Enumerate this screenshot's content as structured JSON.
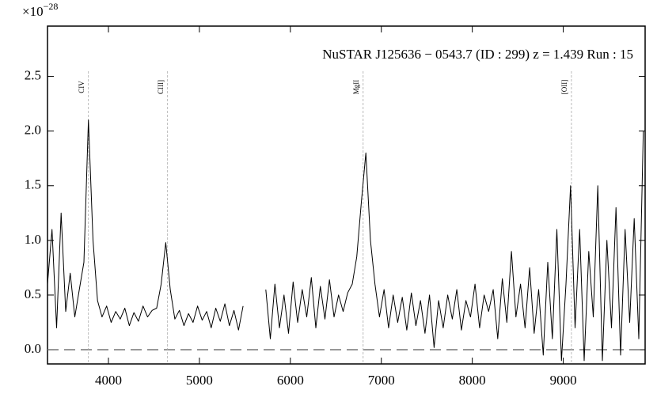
{
  "chart_data": {
    "type": "line",
    "title": "NuSTAR J125636 − 0543.7 (ID : 299)   z = 1.439   Run : 15",
    "y_offset_label": {
      "base": "×10",
      "exponent": "−28"
    },
    "xlim": [
      3330,
      9900
    ],
    "ylim": [
      -0.13,
      2.96
    ],
    "xticks": [
      4000,
      5000,
      6000,
      7000,
      8000,
      9000
    ],
    "yticks": [
      {
        "value": 0,
        "label": "0.0"
      },
      0.5,
      {
        "value": 1,
        "label": "1.0"
      },
      1.5,
      {
        "value": 2,
        "label": "2.0"
      },
      2.5
    ],
    "hline": 0,
    "annotations": [
      {
        "label": "CIV",
        "x": 3780
      },
      {
        "label": "CIII]",
        "x": 4650
      },
      {
        "label": "MgII",
        "x": 6800
      },
      {
        "label": "[OII]",
        "x": 9090
      }
    ],
    "x": [
      3330,
      3380,
      3430,
      3480,
      3530,
      3580,
      3630,
      3680,
      3730,
      3780,
      3830,
      3880,
      3930,
      3980,
      4030,
      4080,
      4130,
      4180,
      4230,
      4280,
      4330,
      4380,
      4430,
      4480,
      4530,
      4580,
      4630,
      4680,
      4730,
      4780,
      4830,
      4880,
      4930,
      4980,
      5030,
      5080,
      5130,
      5180,
      5230,
      5280,
      5330,
      5380,
      5430,
      5480,
      5530,
      5580,
      5630,
      5680,
      5730,
      5780,
      5830,
      5880,
      5930,
      5980,
      6030,
      6080,
      6130,
      6180,
      6230,
      6280,
      6330,
      6380,
      6430,
      6480,
      6530,
      6580,
      6630,
      6680,
      6730,
      6780,
      6830,
      6880,
      6930,
      6980,
      7030,
      7080,
      7130,
      7180,
      7230,
      7280,
      7330,
      7380,
      7430,
      7480,
      7530,
      7580,
      7630,
      7680,
      7730,
      7780,
      7830,
      7880,
      7930,
      7980,
      8030,
      8080,
      8130,
      8180,
      8230,
      8280,
      8330,
      8380,
      8430,
      8480,
      8530,
      8580,
      8630,
      8680,
      8730,
      8780,
      8830,
      8880,
      8930,
      8980,
      9030,
      9080,
      9130,
      9180,
      9230,
      9280,
      9330,
      9380,
      9430,
      9480,
      9530,
      9580,
      9630,
      9680,
      9730,
      9780,
      9830,
      9880
    ],
    "series": [
      {
        "color": "#000000",
        "values": [
          0.6,
          1.1,
          0.2,
          1.25,
          0.35,
          0.7,
          0.3,
          0.55,
          0.8,
          2.1,
          1.0,
          0.45,
          0.3,
          0.4,
          0.25,
          0.35,
          0.28,
          0.38,
          0.22,
          0.34,
          0.26,
          0.4,
          0.3,
          0.36,
          0.38,
          0.6,
          0.98,
          0.55,
          0.28,
          0.36,
          0.22,
          0.33,
          0.25,
          0.4,
          0.27,
          0.35,
          0.2,
          0.38,
          0.26,
          0.42,
          0.22,
          0.36,
          0.18,
          0.4,
          null,
          null,
          null,
          null,
          0.55,
          0.1,
          0.6,
          0.2,
          0.5,
          0.15,
          0.62,
          0.25,
          0.55,
          0.3,
          0.66,
          0.2,
          0.58,
          0.28,
          0.64,
          0.3,
          0.5,
          0.35,
          0.52,
          0.6,
          0.85,
          1.35,
          1.8,
          1.0,
          0.6,
          0.3,
          0.55,
          0.2,
          0.5,
          0.25,
          0.48,
          0.18,
          0.52,
          0.22,
          0.45,
          0.15,
          0.5,
          0.02,
          0.45,
          0.2,
          0.5,
          0.28,
          0.55,
          0.18,
          0.45,
          0.3,
          0.6,
          0.2,
          0.5,
          0.35,
          0.55,
          0.1,
          0.65,
          0.25,
          0.9,
          0.3,
          0.6,
          0.2,
          0.75,
          0.15,
          0.55,
          -0.05,
          0.8,
          0.1,
          1.1,
          -0.1,
          0.6,
          1.5,
          0.2,
          1.1,
          -0.1,
          0.9,
          0.3,
          1.5,
          -0.1,
          1.0,
          0.2,
          1.3,
          -0.05,
          1.1,
          0.25,
          1.2,
          0.1,
          2.0
        ]
      }
    ]
  }
}
